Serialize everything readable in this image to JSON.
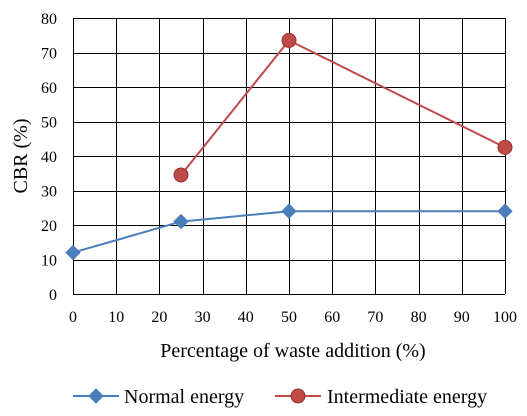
{
  "chart_data": {
    "type": "line",
    "xlabel": "Percentage of waste addition (%)",
    "ylabel": "CBR (%)",
    "xlim": [
      0,
      100
    ],
    "ylim": [
      0,
      80
    ],
    "x_ticks": [
      0,
      10,
      20,
      30,
      40,
      50,
      60,
      70,
      80,
      90,
      100
    ],
    "y_ticks": [
      0,
      10,
      20,
      30,
      40,
      50,
      60,
      70,
      80
    ],
    "grid": true,
    "legend_position": "bottom",
    "series": [
      {
        "name": "Normal energy",
        "color": "#4a7ebb",
        "marker": "diamond",
        "x": [
          0,
          25,
          50,
          100
        ],
        "y": [
          12,
          21,
          24,
          24
        ]
      },
      {
        "name": "Intermediate energy",
        "color": "#be4b48",
        "marker": "circle",
        "x": [
          25,
          50,
          100
        ],
        "y": [
          34.5,
          73.5,
          42.5
        ]
      }
    ]
  }
}
